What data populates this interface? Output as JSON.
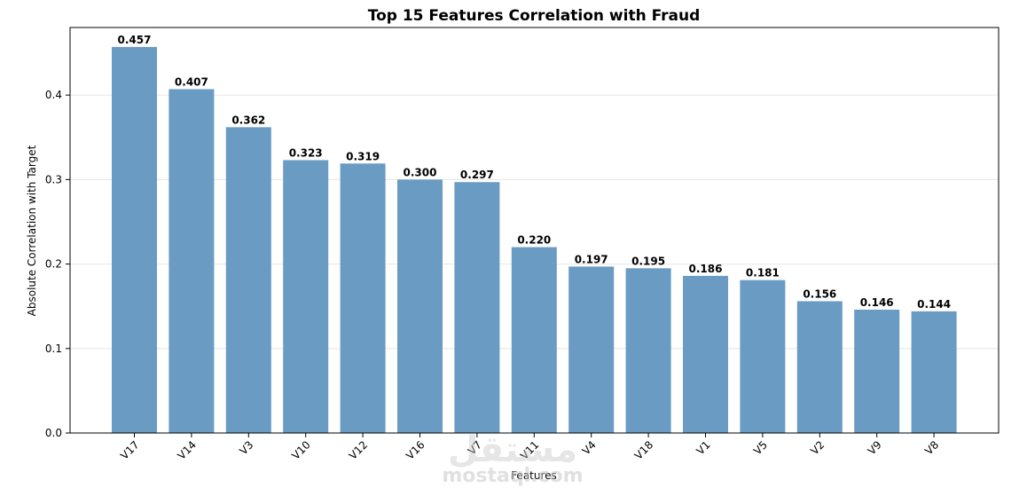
{
  "chart_data": {
    "type": "bar",
    "title": "Top 15 Features Correlation with Fraud",
    "xlabel": "Features",
    "ylabel": "Absolute Correlation with Target",
    "categories": [
      "V17",
      "V14",
      "V3",
      "V10",
      "V12",
      "V16",
      "V7",
      "V11",
      "V4",
      "V18",
      "V1",
      "V5",
      "V2",
      "V9",
      "V8"
    ],
    "values": [
      0.457,
      0.407,
      0.362,
      0.323,
      0.319,
      0.3,
      0.297,
      0.22,
      0.197,
      0.195,
      0.186,
      0.181,
      0.156,
      0.146,
      0.144
    ],
    "value_labels": [
      "0.457",
      "0.407",
      "0.362",
      "0.323",
      "0.319",
      "0.300",
      "0.297",
      "0.220",
      "0.197",
      "0.195",
      "0.186",
      "0.181",
      "0.156",
      "0.146",
      "0.144"
    ],
    "ylim": [
      0,
      0.48
    ],
    "yticks": [
      "0.0",
      "0.1",
      "0.2",
      "0.3",
      "0.4"
    ],
    "ytick_values": [
      0,
      0.1,
      0.2,
      0.3,
      0.4
    ],
    "grid": "horizontal",
    "bar_color": "#6a9bc3"
  },
  "watermark": {
    "logo_text": "مستقل",
    "site_text": "mostaql.com"
  }
}
